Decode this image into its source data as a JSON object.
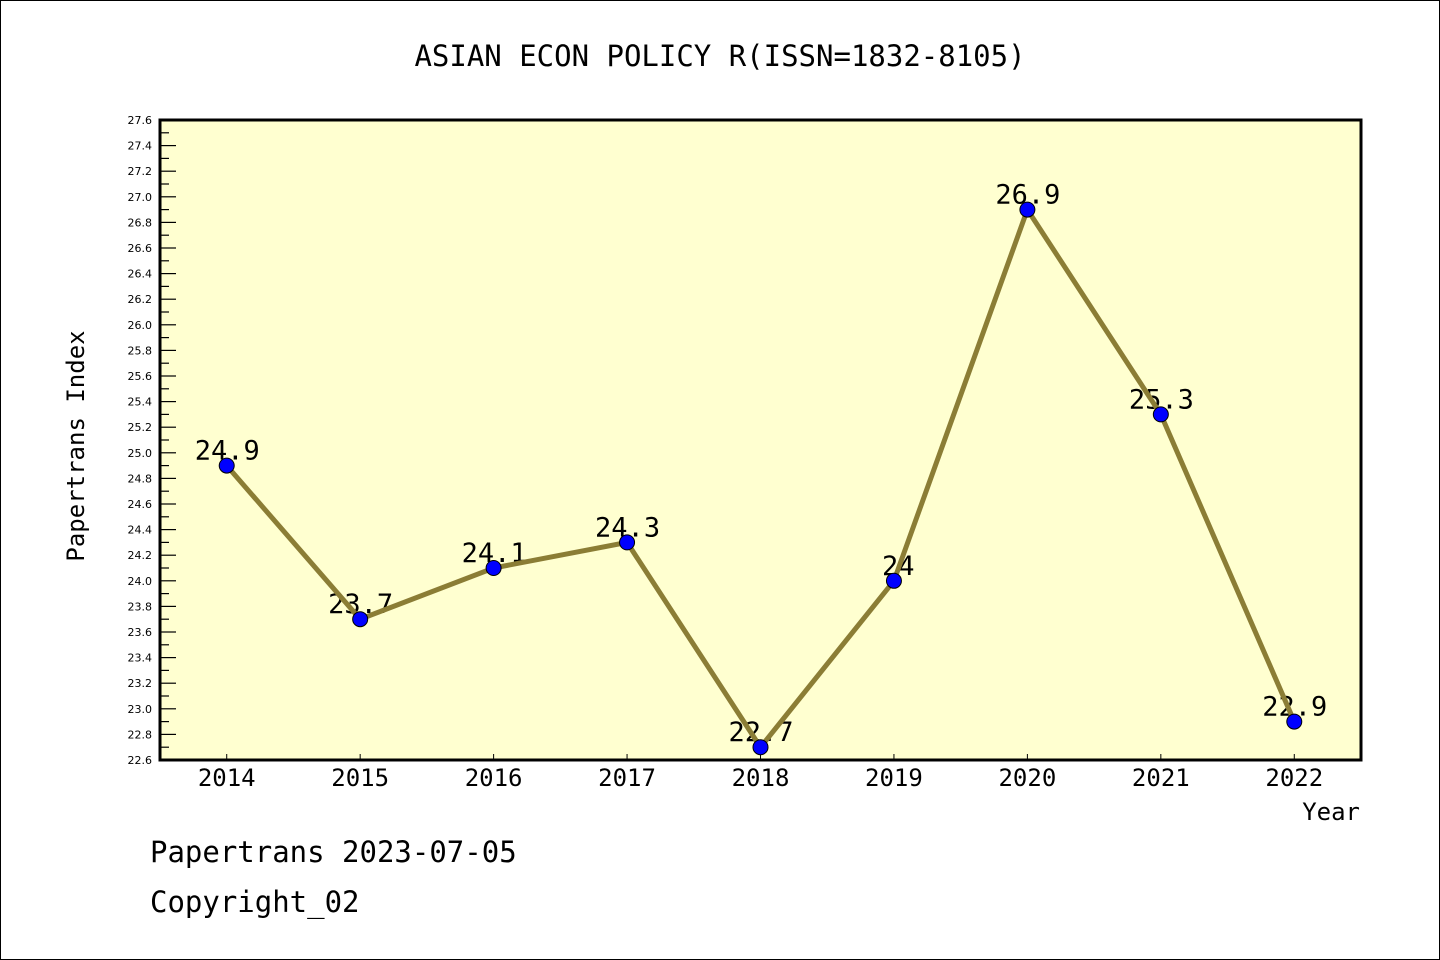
{
  "chart_data": {
    "type": "line",
    "title": "ASIAN ECON POLICY R(ISSN=1832-8105)",
    "xlabel": "Year",
    "ylabel": "Papertrans Index",
    "categories": [
      "2014",
      "2015",
      "2016",
      "2017",
      "2018",
      "2019",
      "2020",
      "2021",
      "2022"
    ],
    "values": [
      24.9,
      23.7,
      24.1,
      24.3,
      22.7,
      24.0,
      26.9,
      25.3,
      22.9
    ],
    "data_labels": [
      "24.9",
      "23.7",
      "24.1",
      "24.3",
      "22.7",
      "24",
      "26.9",
      "25.3",
      "22.9"
    ],
    "ylim": [
      22.6,
      27.6
    ],
    "yticks": [
      "22.6",
      "22.8",
      "23.0",
      "23.2",
      "23.4",
      "23.6",
      "23.8",
      "24.0",
      "24.2",
      "24.4",
      "24.6",
      "24.8",
      "25.0",
      "25.2",
      "25.4",
      "25.6",
      "25.8",
      "26.0",
      "26.2",
      "26.4",
      "26.6",
      "26.8",
      "27.0",
      "27.2",
      "27.4",
      "27.6"
    ],
    "grid": false,
    "colors": {
      "line": "#8B7D35",
      "marker": "#0000FF",
      "plot_bg": "#FFFFD0"
    }
  },
  "footer": {
    "line1": "Papertrans 2023-07-05",
    "line2": "Copyright_02"
  }
}
